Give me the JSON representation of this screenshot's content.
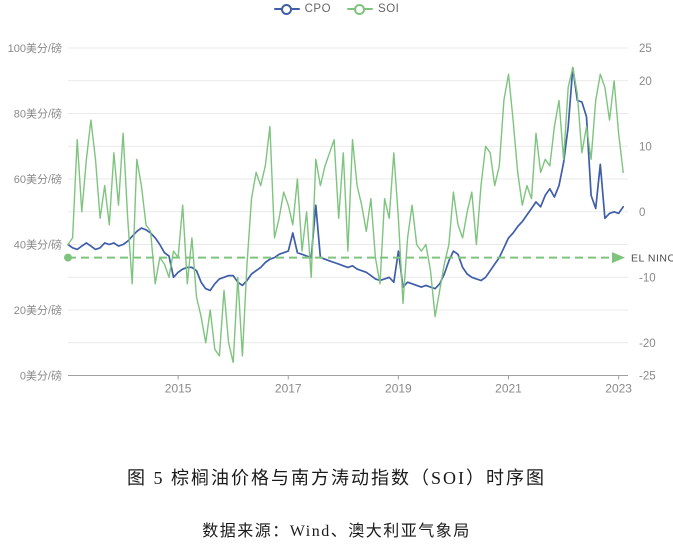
{
  "legend": {
    "cpo_label": "CPO",
    "soi_label": "SOI"
  },
  "caption": {
    "title": "图 5 棕榈油价格与南方涛动指数（SOI）时序图",
    "source": "数据来源：Wind、澳大利亚气象局"
  },
  "colors": {
    "cpo": "#3f5ea9",
    "soi": "#7ec47e",
    "grid": "#e9e9e9",
    "axis": "#a0a0a0",
    "tick_label": "#8a8a8a",
    "el_nino_text": "#4d4d4d"
  },
  "chart_data": {
    "type": "line",
    "title": "",
    "x_axis": {
      "ticks": [
        2015,
        2017,
        2019,
        2021,
        2023
      ],
      "range": [
        2013,
        2023.17
      ]
    },
    "left_axis": {
      "unit": "美分/磅",
      "labels": [
        100,
        80,
        60,
        40,
        20,
        0
      ],
      "range": [
        0,
        100
      ],
      "gridline_step": 10
    },
    "right_axis": {
      "labels": [
        25,
        20,
        10,
        0,
        -10,
        -20,
        -25
      ],
      "range": [
        -25,
        25
      ]
    },
    "grid": true,
    "legend_position": "top-center",
    "x_start_year": 2013,
    "x_step_months": 1,
    "series": [
      {
        "name": "CPO",
        "axis": "left",
        "color": "#3f5ea9",
        "values": [
          40,
          39,
          38.5,
          39.5,
          40.5,
          39.5,
          38.5,
          39,
          40.5,
          40,
          40.5,
          39.5,
          40,
          41,
          42.5,
          44,
          45,
          44.5,
          43.5,
          42,
          40,
          37.5,
          36.5,
          30,
          31.5,
          32.5,
          33,
          33,
          32,
          28.5,
          26.5,
          26,
          28,
          29.5,
          30,
          30.5,
          30.5,
          28.5,
          27.5,
          29,
          31,
          32,
          33,
          34.5,
          35.5,
          36,
          37,
          37.5,
          38,
          43.5,
          37.5,
          37,
          36.5,
          36,
          52,
          36,
          35.5,
          35,
          34.5,
          34,
          33.5,
          33,
          33.5,
          32.5,
          32,
          31.5,
          30.5,
          29.5,
          29,
          29.5,
          30,
          28.5,
          38,
          27,
          28.5,
          28,
          27.5,
          27,
          27.5,
          27,
          26.5,
          28,
          31,
          35,
          38,
          37,
          33,
          31,
          30,
          29.5,
          29,
          30,
          32,
          34,
          36,
          39,
          42,
          43.5,
          45.5,
          47,
          49,
          51,
          53,
          51.5,
          55,
          57,
          54.5,
          58,
          65,
          76,
          94,
          84,
          83.5,
          79,
          55,
          51,
          64.5,
          48,
          49.5,
          50,
          49.5,
          51.5
        ]
      },
      {
        "name": "SOI",
        "axis": "right",
        "color": "#7ec47e",
        "values": [
          -5,
          -4,
          11,
          0,
          8,
          14,
          8,
          -1,
          4,
          -2,
          9,
          1,
          12,
          -1,
          -11,
          8,
          4,
          -2,
          -3,
          -11,
          -7,
          -8,
          -10,
          -6,
          -7,
          1,
          -11,
          -4,
          -13,
          -16,
          -20,
          -15,
          -21,
          -22,
          -12,
          -20,
          -23,
          -10,
          -22,
          -8,
          2,
          6,
          4,
          7,
          13,
          -4,
          -1,
          3,
          1,
          -2,
          5,
          -6,
          0,
          -10,
          8,
          4,
          7,
          9,
          11,
          -1,
          9,
          -6,
          11,
          4,
          1,
          -3,
          2,
          -7,
          -11,
          2,
          -1,
          9,
          -1,
          -14,
          -4,
          1,
          -5,
          -6,
          -5,
          -9,
          -16,
          -12,
          -8,
          -5,
          3,
          -2,
          -4,
          0,
          3,
          -5,
          4,
          10,
          9,
          4,
          7,
          17,
          21,
          14,
          6,
          1,
          4,
          2,
          12,
          6,
          8,
          7,
          13,
          17,
          8,
          19,
          22,
          18,
          9,
          13,
          8,
          17,
          21,
          19,
          14,
          20,
          12,
          6
        ]
      }
    ],
    "reference_line": {
      "label": "EL NINO",
      "axis": "right",
      "value": -7,
      "style": "dashed-arrow"
    }
  }
}
